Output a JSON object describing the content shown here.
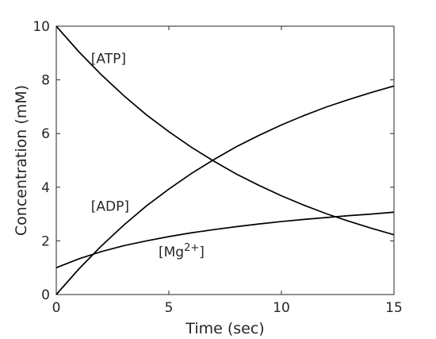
{
  "chart_data": {
    "type": "line",
    "title": "",
    "xlabel": "Time (sec)",
    "ylabel": "Concentration (mM)",
    "xlim": [
      0,
      15
    ],
    "ylim": [
      0,
      10
    ],
    "xticks": [
      0,
      5,
      10,
      15
    ],
    "yticks": [
      0,
      2,
      4,
      6,
      8,
      10
    ],
    "grid": false,
    "legend": "none",
    "line_color": "#000000",
    "x": [
      0,
      1,
      2,
      3,
      4,
      5,
      6,
      7,
      8,
      9,
      10,
      11,
      12,
      13,
      14,
      15
    ],
    "series": [
      {
        "name": "[ATP]",
        "values": [
          10.0,
          9.05,
          8.19,
          7.41,
          6.7,
          6.07,
          5.49,
          4.97,
          4.49,
          4.07,
          3.68,
          3.33,
          3.01,
          2.73,
          2.47,
          2.23
        ]
      },
      {
        "name": "[ADP]",
        "values": [
          0.0,
          0.95,
          1.81,
          2.59,
          3.3,
          3.93,
          4.51,
          5.03,
          5.51,
          5.93,
          6.32,
          6.67,
          6.99,
          7.27,
          7.53,
          7.77
        ]
      },
      {
        "name": "[Mg2+]",
        "values": [
          1.0,
          1.33,
          1.6,
          1.82,
          2.0,
          2.16,
          2.3,
          2.42,
          2.53,
          2.63,
          2.72,
          2.8,
          2.87,
          2.94,
          3.0,
          3.07
        ]
      }
    ],
    "annotations": [
      {
        "series": 0,
        "text": "[ATP]",
        "x": 2.0,
        "y": 8.8
      },
      {
        "series": 1,
        "text": "[ADP]",
        "x": 2.0,
        "y": 3.3
      },
      {
        "series": 2,
        "text": "[Mg",
        "sup": "2+",
        "tail": "]",
        "x": 5.0,
        "y": 1.6
      }
    ]
  }
}
